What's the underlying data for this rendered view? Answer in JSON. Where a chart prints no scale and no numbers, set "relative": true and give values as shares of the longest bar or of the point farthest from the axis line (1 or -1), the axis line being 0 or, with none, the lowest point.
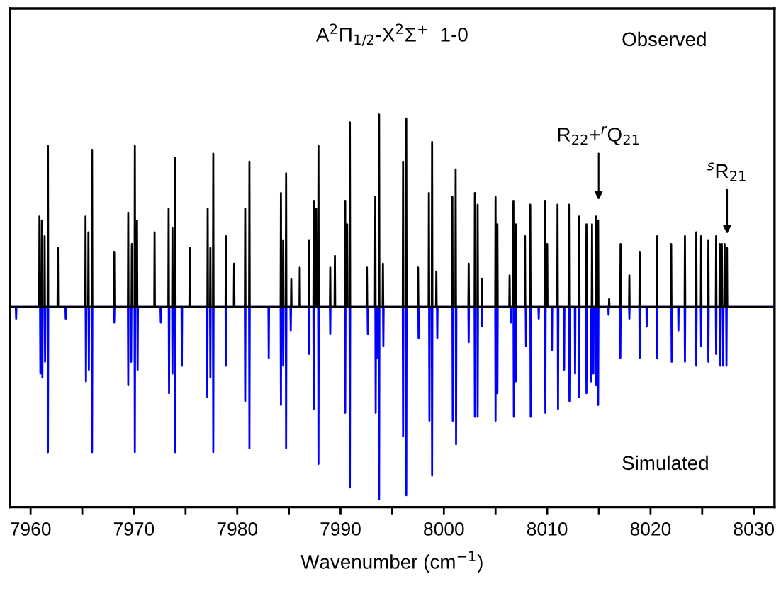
{
  "chart_data": {
    "type": "line",
    "title": "A$^{2}$Π$_{1/2}$-X$^{2}$Σ$^{+}$  1-0",
    "xlabel": "Wavenumber (cm$^{−1}$)",
    "relative": true,
    "tick_labels": "x",
    "xlim": [
      7958,
      8032
    ],
    "xticks": [
      7960,
      {
        "value": 7965,
        "label": null
      },
      7970,
      {
        "value": 7975,
        "label": null
      },
      7980,
      {
        "value": 7985,
        "label": null
      },
      7990,
      {
        "value": 7995,
        "label": null
      },
      8000,
      {
        "value": 8005,
        "label": null
      },
      8010,
      {
        "value": 8015,
        "label": null
      },
      8020,
      {
        "value": 8025,
        "label": null
      },
      8030
    ],
    "annotations": [
      "R$_{22}$+$^{r}$Q$_{21}$",
      "$^{s}$R$_{21}$",
      "Observed",
      "Simulated"
    ],
    "series": [
      {
        "color": "#000000",
        "x": [
          7958.2,
          7960.83,
          7960.86,
          7960.89,
          7961.06,
          7961.09,
          7961.12,
          7961.33,
          7961.36,
          7961.39,
          7961.65,
          7961.68,
          7961.71,
          7962.61,
          7962.64,
          7962.67,
          7965.29,
          7965.32,
          7965.35,
          7965.57,
          7965.6,
          7965.63,
          7965.92,
          7965.95,
          7965.98,
          7968.06,
          7968.09,
          7968.12,
          7969.42,
          7969.45,
          7969.48,
          7969.77,
          7969.8,
          7969.83,
          7970.06,
          7970.09,
          7970.12,
          7970.27,
          7970.3,
          7970.33,
          7971.97,
          7972.0,
          7972.03,
          7973.33,
          7973.36,
          7973.39,
          7973.7,
          7973.73,
          7973.76,
          7973.97,
          7974.0,
          7974.03,
          7975.37,
          7975.4,
          7975.43,
          7977.11,
          7977.14,
          7977.17,
          7977.37,
          7977.4,
          7977.43,
          7977.65,
          7977.68,
          7977.71,
          7978.87,
          7978.9,
          7978.93,
          7979.67,
          7979.7,
          7979.73,
          7980.74,
          7980.77,
          7980.8,
          7981.15,
          7981.18,
          7981.21,
          7984.2,
          7984.23,
          7984.26,
          7984.42,
          7984.45,
          7984.48,
          7984.7,
          7984.73,
          7984.76,
          7985.2,
          7985.23,
          7985.26,
          7986.02,
          7986.05,
          7986.08,
          7986.92,
          7986.95,
          7986.98,
          7987.37,
          7987.4,
          7987.43,
          7987.61,
          7987.64,
          7987.67,
          7987.83,
          7987.86,
          7987.89,
          7988.97,
          7989.0,
          7989.03,
          7989.42,
          7989.45,
          7989.48,
          7990.42,
          7990.45,
          7990.48,
          7990.61,
          7990.64,
          7990.67,
          7990.87,
          7990.9,
          7990.93,
          7992.52,
          7992.55,
          7992.58,
          7993.33,
          7993.36,
          7993.39,
          7993.7,
          7993.73,
          7993.76,
          7994.07,
          7994.1,
          7994.13,
          7996.02,
          7996.05,
          7996.08,
          7996.33,
          7996.36,
          7996.39,
          7997.47,
          7997.5,
          7997.53,
          7998.52,
          7998.55,
          7998.58,
          7998.83,
          7998.86,
          7998.89,
          7999.24,
          7999.27,
          7999.3,
          8000.79,
          8000.82,
          8000.85,
          8001.11,
          8001.14,
          8001.17,
          8002.37,
          8002.4,
          8002.43,
          8002.97,
          8003.0,
          8003.03,
          8003.24,
          8003.27,
          8003.3,
          8003.65,
          8003.68,
          8003.71,
          8004.97,
          8005.0,
          8005.03,
          8005.15,
          8005.18,
          8005.21,
          8006.33,
          8006.36,
          8006.39,
          8006.7,
          8006.73,
          8006.76,
          8006.92,
          8006.95,
          8006.98,
          8007.82,
          8007.85,
          8007.88,
          8008.33,
          8008.36,
          8008.39,
          8009.74,
          8009.77,
          8009.8,
          8009.97,
          8010.0,
          8010.03,
          8010.97,
          8011.0,
          8011.03,
          8012.07,
          8012.1,
          8012.13,
          8013.07,
          8013.1,
          8013.13,
          8013.77,
          8013.8,
          8013.83,
          8014.31,
          8014.34,
          8014.37,
          8014.72,
          8014.75,
          8014.78,
          8014.9,
          8014.93,
          8014.96,
          8015.97,
          8016.0,
          8016.03,
          8017.07,
          8017.1,
          8017.13,
          8017.92,
          8017.95,
          8017.98,
          8018.92,
          8018.95,
          8018.98,
          8020.61,
          8020.64,
          8020.67,
          8021.97,
          8022.0,
          8022.03,
          8023.3,
          8023.33,
          8023.36,
          8024.4,
          8024.43,
          8024.46,
          8024.87,
          8024.9,
          8024.93,
          8025.57,
          8025.6,
          8025.63,
          8026.32,
          8026.35,
          8026.38,
          8026.67,
          8026.7,
          8026.73,
          8026.87,
          8026.9,
          8026.93,
          8027.14,
          8027.17,
          8027.2,
          8027.37,
          8027.4,
          8027.43,
          8031.8
        ],
        "values": [
          0.51,
          0.51,
          0.74,
          0.51,
          0.51,
          0.73,
          0.51,
          0.51,
          0.69,
          0.51,
          0.51,
          0.92,
          0.51,
          0.51,
          0.66,
          0.51,
          0.51,
          0.74,
          0.51,
          0.51,
          0.7,
          0.51,
          0.51,
          0.91,
          0.51,
          0.51,
          0.65,
          0.51,
          0.51,
          0.75,
          0.51,
          0.51,
          0.67,
          0.51,
          0.51,
          0.92,
          0.51,
          0.51,
          0.73,
          0.51,
          0.51,
          0.7,
          0.51,
          0.51,
          0.76,
          0.51,
          0.51,
          0.71,
          0.51,
          0.51,
          0.89,
          0.51,
          0.51,
          0.66,
          0.51,
          0.51,
          0.76,
          0.51,
          0.51,
          0.66,
          0.51,
          0.51,
          0.9,
          0.51,
          0.51,
          0.69,
          0.51,
          0.51,
          0.62,
          0.51,
          0.51,
          0.76,
          0.51,
          0.51,
          0.88,
          0.51,
          0.51,
          0.8,
          0.51,
          0.51,
          0.68,
          0.51,
          0.51,
          0.85,
          0.51,
          0.51,
          0.58,
          0.51,
          0.51,
          0.61,
          0.51,
          0.51,
          0.68,
          0.51,
          0.51,
          0.78,
          0.51,
          0.51,
          0.76,
          0.51,
          0.51,
          0.92,
          0.51,
          0.51,
          0.61,
          0.51,
          0.51,
          0.64,
          0.51,
          0.51,
          0.78,
          0.51,
          0.51,
          0.72,
          0.51,
          0.51,
          0.98,
          0.51,
          0.51,
          0.61,
          0.51,
          0.51,
          0.79,
          0.51,
          0.51,
          1.0,
          0.51,
          0.51,
          0.62,
          0.51,
          0.51,
          0.88,
          0.51,
          0.51,
          0.99,
          0.51,
          0.51,
          0.61,
          0.51,
          0.51,
          0.8,
          0.51,
          0.51,
          0.93,
          0.51,
          0.51,
          0.6,
          0.51,
          0.51,
          0.79,
          0.51,
          0.51,
          0.86,
          0.51,
          0.51,
          0.62,
          0.51,
          0.51,
          0.8,
          0.51,
          0.51,
          0.77,
          0.51,
          0.51,
          0.58,
          0.51,
          0.51,
          0.79,
          0.51,
          0.51,
          0.72,
          0.51,
          0.51,
          0.59,
          0.51,
          0.51,
          0.78,
          0.51,
          0.51,
          0.72,
          0.51,
          0.51,
          0.69,
          0.51,
          0.51,
          0.77,
          0.51,
          0.51,
          0.78,
          0.51,
          0.51,
          0.67,
          0.51,
          0.51,
          0.77,
          0.51,
          0.51,
          0.77,
          0.51,
          0.51,
          0.74,
          0.51,
          0.51,
          0.72,
          0.51,
          0.51,
          0.72,
          0.51,
          0.51,
          0.74,
          0.51,
          0.51,
          0.73,
          0.51,
          0.51,
          0.53,
          0.51,
          0.51,
          0.67,
          0.51,
          0.51,
          0.59,
          0.51,
          0.51,
          0.65,
          0.51,
          0.51,
          0.69,
          0.51,
          0.51,
          0.67,
          0.51,
          0.51,
          0.69,
          0.51,
          0.51,
          0.7,
          0.51,
          0.51,
          0.69,
          0.51,
          0.51,
          0.68,
          0.51,
          0.51,
          0.69,
          0.51,
          0.51,
          0.67,
          0.51,
          0.51,
          0.67,
          0.51,
          0.51,
          0.67,
          0.51,
          0.51,
          0.66,
          0.51,
          0.51
        ]
      },
      {
        "color": "#0000ff",
        "x": [
          7958.2,
          7958.57,
          7958.6,
          7958.63,
          7960.92,
          7960.95,
          7960.98,
          7961.11,
          7961.14,
          7961.17,
          7961.37,
          7961.4,
          7961.43,
          7961.65,
          7961.68,
          7961.71,
          7963.37,
          7963.4,
          7963.43,
          7965.33,
          7965.36,
          7965.39,
          7965.61,
          7965.64,
          7965.67,
          7965.92,
          7965.95,
          7965.98,
          7968.06,
          7968.09,
          7968.12,
          7969.42,
          7969.45,
          7969.48,
          7969.7,
          7969.73,
          7969.76,
          7970.06,
          7970.09,
          7970.12,
          7970.33,
          7970.36,
          7970.39,
          7972.57,
          7972.6,
          7972.63,
          7973.37,
          7973.4,
          7973.43,
          7973.7,
          7973.73,
          7973.76,
          7973.97,
          7974.0,
          7974.03,
          7974.61,
          7974.64,
          7974.67,
          7977.07,
          7977.1,
          7977.13,
          7977.37,
          7977.4,
          7977.43,
          7977.65,
          7977.68,
          7977.71,
          7978.87,
          7978.9,
          7978.93,
          7980.74,
          7980.77,
          7980.8,
          7981.15,
          7981.18,
          7981.21,
          7983.02,
          7983.05,
          7983.08,
          7984.2,
          7984.23,
          7984.26,
          7984.42,
          7984.45,
          7984.48,
          7984.7,
          7984.73,
          7984.76,
          7985.15,
          7985.18,
          7985.21,
          7986.92,
          7986.95,
          7986.98,
          7987.37,
          7987.4,
          7987.43,
          7987.83,
          7987.86,
          7987.89,
          7988.97,
          7989.0,
          7989.03,
          7990.42,
          7990.45,
          7990.48,
          7990.87,
          7990.9,
          7990.93,
          7992.61,
          7992.64,
          7992.67,
          7993.37,
          7993.4,
          7993.43,
          7993.52,
          7993.55,
          7993.58,
          7993.7,
          7993.73,
          7993.76,
          7994.11,
          7994.14,
          7994.17,
          7996.02,
          7996.05,
          7996.08,
          7996.33,
          7996.36,
          7996.39,
          7997.52,
          7997.55,
          7997.58,
          7998.57,
          7998.6,
          7998.63,
          7998.83,
          7998.86,
          7998.89,
          7999.33,
          7999.36,
          7999.39,
          8000.83,
          8000.86,
          8000.89,
          8001.15,
          8001.18,
          8001.21,
          8002.37,
          8002.4,
          8002.43,
          8002.97,
          8003.0,
          8003.03,
          8003.24,
          8003.27,
          8003.3,
          8003.65,
          8003.68,
          8003.71,
          8004.97,
          8005.0,
          8005.03,
          8005.15,
          8005.18,
          8005.21,
          8006.47,
          8006.5,
          8006.53,
          8006.74,
          8006.77,
          8006.8,
          8006.92,
          8006.95,
          8006.98,
          8007.92,
          8007.95,
          8007.98,
          8008.37,
          8008.4,
          8008.43,
          8009.15,
          8009.18,
          8009.21,
          8009.79,
          8009.82,
          8009.85,
          8010.43,
          8010.46,
          8010.49,
          8011.02,
          8011.05,
          8011.08,
          8011.61,
          8011.64,
          8011.67,
          8012.12,
          8012.15,
          8012.18,
          8012.67,
          8012.7,
          8012.73,
          8013.07,
          8013.1,
          8013.13,
          8013.77,
          8013.8,
          8013.83,
          8014.22,
          8014.25,
          8014.28,
          8014.44,
          8014.47,
          8014.5,
          8014.72,
          8014.75,
          8014.78,
          8014.9,
          8014.93,
          8014.96,
          8015.91,
          8015.94,
          8015.97,
          8017.05,
          8017.08,
          8017.11,
          8017.92,
          8017.95,
          8017.98,
          8018.92,
          8018.95,
          8018.98,
          8019.6,
          8019.63,
          8019.66,
          8020.61,
          8020.64,
          8020.67,
          8022.02,
          8022.05,
          8022.08,
          8022.67,
          8022.7,
          8022.73,
          8023.3,
          8023.33,
          8023.36,
          8024.4,
          8024.43,
          8024.46,
          8024.87,
          8024.9,
          8024.93,
          8025.57,
          8025.6,
          8025.63,
          8026.32,
          8026.35,
          8026.38,
          8026.73,
          8026.76,
          8026.79,
          8027.0,
          8027.03,
          8027.06,
          8027.32,
          8027.35,
          8027.38,
          8031.8
        ],
        "values": [
          0.51,
          0.51,
          0.48,
          0.51,
          0.51,
          0.34,
          0.51,
          0.51,
          0.33,
          0.51,
          0.51,
          0.37,
          0.51,
          0.51,
          0.14,
          0.51,
          0.51,
          0.48,
          0.51,
          0.51,
          0.32,
          0.51,
          0.51,
          0.35,
          0.51,
          0.51,
          0.14,
          0.51,
          0.51,
          0.47,
          0.51,
          0.51,
          0.31,
          0.51,
          0.51,
          0.37,
          0.51,
          0.51,
          0.14,
          0.51,
          0.51,
          0.35,
          0.51,
          0.51,
          0.47,
          0.51,
          0.51,
          0.29,
          0.51,
          0.51,
          0.34,
          0.51,
          0.51,
          0.14,
          0.51,
          0.51,
          0.36,
          0.51,
          0.51,
          0.28,
          0.51,
          0.51,
          0.33,
          0.51,
          0.51,
          0.14,
          0.51,
          0.51,
          0.36,
          0.51,
          0.51,
          0.27,
          0.51,
          0.51,
          0.15,
          0.51,
          0.51,
          0.38,
          0.51,
          0.51,
          0.26,
          0.51,
          0.51,
          0.36,
          0.51,
          0.51,
          0.15,
          0.51,
          0.51,
          0.45,
          0.51,
          0.51,
          0.39,
          0.51,
          0.51,
          0.25,
          0.51,
          0.51,
          0.11,
          0.51,
          0.51,
          0.44,
          0.51,
          0.51,
          0.24,
          0.51,
          0.51,
          0.05,
          0.51,
          0.51,
          0.44,
          0.51,
          0.51,
          0.24,
          0.51,
          0.51,
          0.38,
          0.51,
          0.51,
          0.02,
          0.51,
          0.51,
          0.41,
          0.51,
          0.51,
          0.18,
          0.51,
          0.51,
          0.03,
          0.51,
          0.51,
          0.43,
          0.51,
          0.51,
          0.22,
          0.51,
          0.51,
          0.08,
          0.51,
          0.51,
          0.43,
          0.51,
          0.51,
          0.22,
          0.51,
          0.51,
          0.16,
          0.51,
          0.51,
          0.42,
          0.51,
          0.51,
          0.23,
          0.51,
          0.51,
          0.23,
          0.51,
          0.51,
          0.46,
          0.51,
          0.51,
          0.22,
          0.51,
          0.51,
          0.29,
          0.51,
          0.51,
          0.47,
          0.51,
          0.51,
          0.23,
          0.51,
          0.51,
          0.32,
          0.51,
          0.51,
          0.41,
          0.51,
          0.51,
          0.23,
          0.51,
          0.51,
          0.48,
          0.51,
          0.51,
          0.24,
          0.51,
          0.51,
          0.4,
          0.51,
          0.51,
          0.25,
          0.51,
          0.51,
          0.35,
          0.51,
          0.51,
          0.27,
          0.51,
          0.51,
          0.34,
          0.51,
          0.51,
          0.28,
          0.51,
          0.51,
          0.29,
          0.51,
          0.51,
          0.32,
          0.51,
          0.51,
          0.34,
          0.51,
          0.51,
          0.31,
          0.51,
          0.51,
          0.26,
          0.51,
          0.51,
          0.49,
          0.51,
          0.51,
          0.38,
          0.51,
          0.51,
          0.48,
          0.51,
          0.51,
          0.38,
          0.51,
          0.51,
          0.46,
          0.51,
          0.51,
          0.38,
          0.51,
          0.51,
          0.37,
          0.51,
          0.51,
          0.45,
          0.51,
          0.51,
          0.37,
          0.51,
          0.51,
          0.36,
          0.51,
          0.51,
          0.41,
          0.51,
          0.51,
          0.37,
          0.51,
          0.51,
          0.39,
          0.51,
          0.51,
          0.36,
          0.51,
          0.51,
          0.36,
          0.51,
          0.51,
          0.36,
          0.51,
          0.51
        ]
      }
    ]
  }
}
